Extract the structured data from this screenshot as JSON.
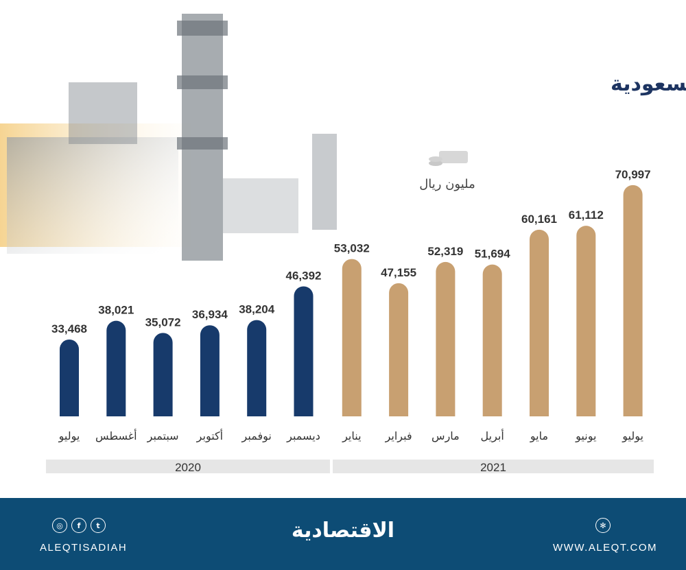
{
  "chart_data": {
    "type": "bar",
    "title": "إيرادات الصادرات النفطية السعودية",
    "unit": "مليون ريال",
    "categories": [
      "يوليو",
      "أغسطس",
      "سبتمبر",
      "أكتوبر",
      "نوفمبر",
      "ديسمبر",
      "يناير",
      "فبراير",
      "مارس",
      "أبريل",
      "مايو",
      "يونيو",
      "يوليو"
    ],
    "years": [
      {
        "label": "2020",
        "count": 6
      },
      {
        "label": "2021",
        "count": 7
      }
    ],
    "values": [
      33468,
      38021,
      35072,
      36934,
      38204,
      46392,
      53032,
      47155,
      52319,
      51694,
      60161,
      61112,
      70997
    ],
    "value_labels": [
      "33,468",
      "38,021",
      "35,072",
      "36,934",
      "38,204",
      "46,392",
      "53,032",
      "47,155",
      "52,319",
      "51,694",
      "60,161",
      "61,112",
      "70,997"
    ],
    "colors": {
      "2020": "#173a6b",
      "2021": "#c8a071"
    },
    "grid": false
  },
  "footer": {
    "social_handle": "ALEQTISADIAH",
    "website": "WWW.ALEQT.COM",
    "logo": "الاقتصادية",
    "social_icons": [
      "instagram-icon",
      "facebook-icon",
      "twitter-icon"
    ],
    "web_icon": "globe-icon"
  }
}
